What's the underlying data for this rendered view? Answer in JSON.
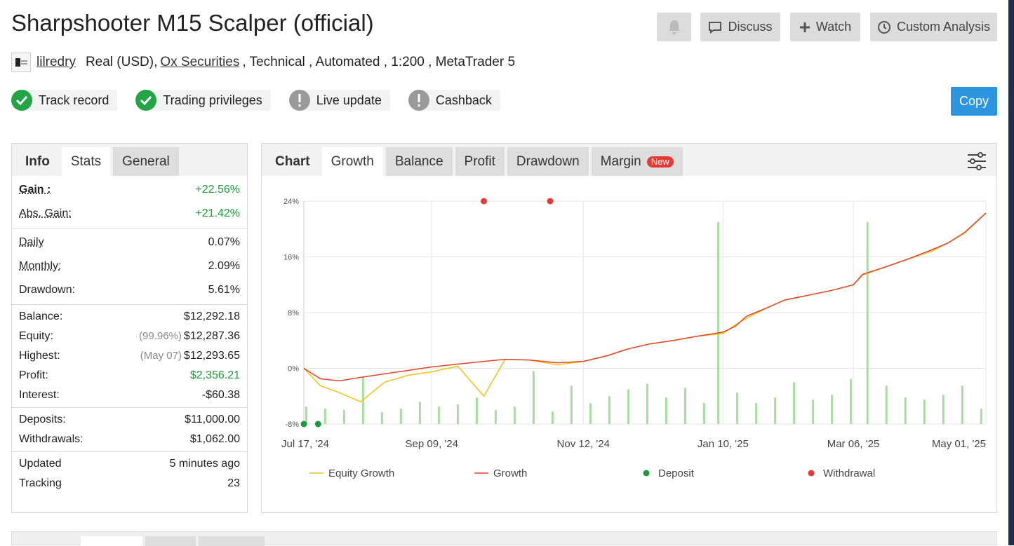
{
  "header": {
    "title": "Sharpshooter M15 Scalper (official)",
    "buttons": [
      "Discuss",
      "Watch",
      "Custom Analysis"
    ],
    "copy": "Copy"
  },
  "account": {
    "user": "lilredry",
    "type": "Real (USD),",
    "broker": "Ox Securities",
    "details": ", Technical , Automated , 1:200 , MetaTrader 5"
  },
  "badges": [
    {
      "label": "Track record",
      "ok": true
    },
    {
      "label": "Trading privileges",
      "ok": true
    },
    {
      "label": "Live update",
      "ok": false
    },
    {
      "label": "Cashback",
      "ok": false
    }
  ],
  "stats": {
    "tabs": [
      "Info",
      "Stats",
      "General"
    ],
    "active": 1,
    "groups": [
      [
        {
          "label": "Gain :",
          "value": "+22.56%",
          "color": "#1e9b3a",
          "hint": true,
          "bold": true
        },
        {
          "label": "Abs. Gain:",
          "value": "+21.42%",
          "color": "#1e9b3a",
          "hint": true
        }
      ],
      [
        {
          "label": "Daily",
          "value": "0.07%",
          "hint": true
        },
        {
          "label": "Monthly:",
          "value": "2.09%",
          "hint": true
        },
        {
          "label": "Drawdown:",
          "value": "5.61%"
        }
      ],
      [
        {
          "label": "Balance:",
          "value": "$12,292.18"
        },
        {
          "label": "Equity:",
          "note": "(99.96%)",
          "value": "$12,287.36"
        },
        {
          "label": "Highest:",
          "note": "(May 07)",
          "value": "$12,293.65"
        },
        {
          "label": "Profit:",
          "value": "$2,356.21",
          "color": "#1e9b3a"
        },
        {
          "label": "Interest:",
          "value": "-$60.38"
        }
      ],
      [
        {
          "label": "Deposits:",
          "value": "$11,000.00"
        },
        {
          "label": "Withdrawals:",
          "value": "$1,062.00"
        }
      ],
      [
        {
          "label": "Updated",
          "value": "5 minutes ago"
        },
        {
          "label": "Tracking",
          "value": "23"
        }
      ]
    ]
  },
  "chart_panel": {
    "tabs": [
      "Chart",
      "Growth",
      "Balance",
      "Profit",
      "Drawdown",
      "Margin"
    ],
    "active": 1,
    "badge": "New"
  },
  "chart_data": {
    "type": "line",
    "xlim": [
      "2024-07-17",
      "2025-05-01"
    ],
    "xticks": [
      {
        "value": "2024-07-17",
        "label": "Jul 17, '24"
      },
      {
        "value": "2024-09-09",
        "label": "Sep 09, '24"
      },
      {
        "value": "2024-11-12",
        "label": "Nov 12, '24"
      },
      {
        "value": "2025-01-10",
        "label": "Jan 10, '25"
      },
      {
        "value": "2025-03-06",
        "label": "Mar 06, '25"
      },
      {
        "value": "2025-05-01",
        "label": "May 01, '25"
      }
    ],
    "ylim": [
      -8,
      24
    ],
    "yticks": [
      {
        "value": -8,
        "label": "-8%"
      },
      {
        "value": 0,
        "label": "0%"
      },
      {
        "value": 8,
        "label": "8%"
      },
      {
        "value": 16,
        "label": "16%"
      },
      {
        "value": 24,
        "label": "24%"
      }
    ],
    "grid": true,
    "series": [
      {
        "type": "bar",
        "color": "#a8dca0",
        "x": [
          "2024-07-18",
          "2024-07-26",
          "2024-08-03",
          "2024-08-11",
          "2024-08-19",
          "2024-08-27",
          "2024-09-04",
          "2024-09-12",
          "2024-09-20",
          "2024-09-28",
          "2024-10-06",
          "2024-10-14",
          "2024-10-22",
          "2024-10-30",
          "2024-11-07",
          "2024-11-15",
          "2024-11-23",
          "2024-12-01",
          "2024-12-09",
          "2024-12-17",
          "2024-12-25",
          "2025-01-02",
          "2025-01-08",
          "2025-01-16",
          "2025-01-24",
          "2025-02-01",
          "2025-02-09",
          "2025-02-17",
          "2025-02-25",
          "2025-03-05",
          "2025-03-12",
          "2025-03-20",
          "2025-03-28",
          "2025-04-05",
          "2025-04-13",
          "2025-04-21",
          "2025-04-29"
        ],
        "values": [
          -5.5,
          -5.8,
          -6,
          -1.2,
          -6.3,
          -5.8,
          -4.8,
          -5.5,
          -5.2,
          -4.2,
          -6,
          -5.5,
          -0.4,
          -6.2,
          -2.5,
          -5,
          -4,
          -3,
          -2.2,
          -4.2,
          -2.8,
          -5,
          21,
          -3.5,
          -5,
          -4.2,
          -2,
          -4.5,
          -3.8,
          -1.5,
          21,
          -2.5,
          -4.2,
          -4.5,
          -3.8,
          -2.5,
          -5.8
        ]
      },
      {
        "name": "Equity Growth",
        "type": "line",
        "color": "#f2c21b",
        "x": [
          "2024-07-17",
          "2024-07-24",
          "2024-08-01",
          "2024-08-10",
          "2024-08-20",
          "2024-08-30",
          "2024-09-09",
          "2024-09-20",
          "2024-10-01",
          "2024-10-10",
          "2024-10-20",
          "2024-11-01",
          "2024-11-12",
          "2024-11-22",
          "2024-12-01",
          "2024-12-10",
          "2024-12-20",
          "2024-12-30",
          "2025-01-10",
          "2025-01-15",
          "2025-01-20",
          "2025-01-28",
          "2025-02-05",
          "2025-02-15",
          "2025-02-25",
          "2025-03-06",
          "2025-03-10",
          "2025-03-20",
          "2025-03-30",
          "2025-04-08",
          "2025-04-15",
          "2025-04-22",
          "2025-05-01"
        ],
        "values": [
          0,
          -2.5,
          -3.5,
          -4.8,
          -2,
          -1,
          -0.5,
          0.3,
          -4,
          1.3,
          1.2,
          0.5,
          1,
          1.8,
          2.8,
          3.5,
          4,
          4.6,
          5,
          6.2,
          7.2,
          8.6,
          9.8,
          10.5,
          11.2,
          12,
          13.4,
          14.6,
          15.8,
          16.8,
          18,
          19.4,
          22.3
        ]
      },
      {
        "name": "Growth",
        "type": "line",
        "color": "#e0452b",
        "x": [
          "2024-07-17",
          "2024-07-24",
          "2024-08-01",
          "2024-08-10",
          "2024-08-20",
          "2024-08-30",
          "2024-09-09",
          "2024-09-20",
          "2024-10-01",
          "2024-10-10",
          "2024-10-20",
          "2024-11-01",
          "2024-11-12",
          "2024-11-22",
          "2024-12-01",
          "2024-12-10",
          "2024-12-20",
          "2024-12-30",
          "2025-01-10",
          "2025-01-15",
          "2025-01-20",
          "2025-01-28",
          "2025-02-05",
          "2025-02-15",
          "2025-02-25",
          "2025-03-06",
          "2025-03-10",
          "2025-03-20",
          "2025-03-30",
          "2025-04-08",
          "2025-04-15",
          "2025-04-22",
          "2025-05-01"
        ],
        "values": [
          0,
          -1.5,
          -1.8,
          -1.3,
          -0.8,
          -0.3,
          0.2,
          0.6,
          1,
          1.3,
          1.2,
          0.8,
          1,
          1.8,
          2.8,
          3.5,
          4,
          4.6,
          5.2,
          6,
          7.5,
          8.6,
          9.8,
          10.5,
          11.2,
          12,
          13.5,
          14.6,
          15.8,
          17,
          18,
          19.5,
          22.3
        ]
      },
      {
        "name": "Deposit",
        "type": "scatter",
        "color": "#1a9c3e",
        "x": [
          "2024-07-17",
          "2024-07-23"
        ],
        "values": [
          -8,
          -8
        ]
      },
      {
        "name": "Withdrawal",
        "type": "scatter",
        "color": "#e53935",
        "x": [
          "2024-10-01",
          "2024-10-29"
        ],
        "values": [
          24,
          24
        ]
      }
    ]
  }
}
